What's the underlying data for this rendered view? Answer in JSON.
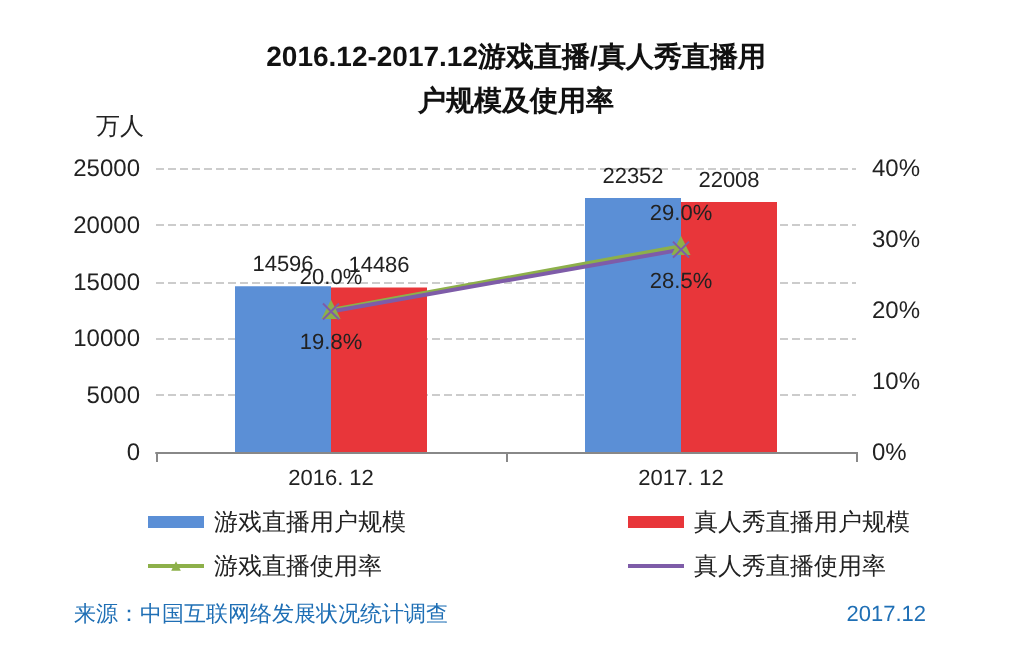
{
  "chart_data": {
    "type": "bar",
    "title": "2016.12-2017.12游戏直播/真人秀直播用户规模及使用率",
    "ylabel": "万人",
    "categories": [
      "2016. 12",
      "2017. 12"
    ],
    "series": [
      {
        "name": "游戏直播用户规模",
        "color": "#5b8fd6",
        "values": [
          14596,
          22352
        ],
        "value_labels": [
          "14596",
          "22352"
        ]
      },
      {
        "name": "真人秀直播用户规模",
        "color": "#e8363a",
        "values": [
          14486,
          22008
        ],
        "value_labels": [
          "14486",
          "22008"
        ]
      },
      {
        "name": "游戏直播使用率",
        "type": "line",
        "axis": "y2",
        "color": "#8db04a",
        "marker": "triangle",
        "values": [
          20.0,
          29.0
        ],
        "value_labels": [
          "20.0%",
          "29.0%"
        ]
      },
      {
        "name": "真人秀直播使用率",
        "type": "line",
        "axis": "y2",
        "color": "#7e5ca8",
        "marker": "cross",
        "values": [
          19.8,
          28.5
        ],
        "value_labels": [
          "19.8%",
          "28.5%"
        ]
      }
    ],
    "ylim": [
      0,
      25000
    ],
    "yticks": [
      0,
      5000,
      10000,
      15000,
      20000,
      25000
    ],
    "y2lim": [
      0,
      40
    ],
    "y2ticks": [
      {
        "value": 0,
        "label": "0%"
      },
      {
        "value": 10,
        "label": "10%"
      },
      {
        "value": 20,
        "label": "20%"
      },
      {
        "value": 30,
        "label": "30%"
      },
      {
        "value": 40,
        "label": "40%"
      }
    ],
    "grid": "y",
    "legend": "bottom",
    "annotations": [
      "来源：中国互联网络发展状况统计调查",
      "2017.12"
    ]
  }
}
